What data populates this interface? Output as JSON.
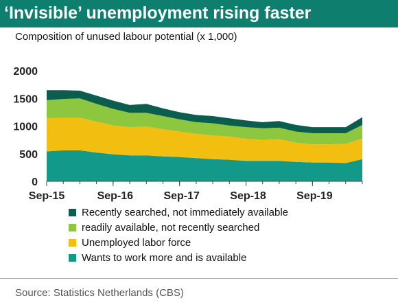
{
  "title": "‘Invisible’ unemployment rising faster",
  "subtitle": "Composition of unused labour potential (x 1,000)",
  "source": "Source: Statistics Netherlands (CBS)",
  "colors": {
    "title_bg": "#0e7f6e",
    "recently_searched": "#0b5e4e",
    "readily_available": "#8dc63f",
    "unemployed": "#f2bf10",
    "wants_more": "#12998a"
  },
  "chart_data": {
    "type": "area",
    "stacked": true,
    "title": "‘Invisible’ unemployment rising faster",
    "subtitle": "Composition of unused labour potential (x 1,000)",
    "x_ticks": [
      "Sep-15",
      "Sep-16",
      "Sep-17",
      "Sep-18",
      "Sep-19"
    ],
    "y_ticks": [
      "0",
      "500",
      "1000",
      "1500",
      "2000"
    ],
    "ylim": [
      0,
      2000
    ],
    "x": [
      "Sep-15",
      "Dec-15",
      "Mar-16",
      "Jun-16",
      "Sep-16",
      "Dec-16",
      "Mar-17",
      "Jun-17",
      "Sep-17",
      "Dec-17",
      "Mar-18",
      "Jun-18",
      "Sep-18",
      "Dec-18",
      "Mar-19",
      "Jun-19",
      "Sep-19",
      "Dec-19",
      "Mar-20",
      "Jun-20"
    ],
    "series": [
      {
        "name": "Wants to work more and is available",
        "key": "wants_more",
        "values": [
          540,
          560,
          560,
          520,
          490,
          470,
          470,
          450,
          440,
          420,
          400,
          390,
          370,
          370,
          370,
          350,
          340,
          340,
          330,
          400
        ]
      },
      {
        "name": "Unemployed labor force",
        "key": "unemployed",
        "values": [
          600,
          590,
          590,
          560,
          520,
          510,
          520,
          490,
          460,
          440,
          430,
          420,
          400,
          380,
          390,
          350,
          330,
          330,
          350,
          370
        ]
      },
      {
        "name": "readily available, not recently searched",
        "key": "readily_available",
        "values": [
          330,
          340,
          350,
          320,
          300,
          260,
          250,
          240,
          220,
          210,
          220,
          200,
          210,
          210,
          210,
          200,
          200,
          200,
          190,
          250
        ]
      },
      {
        "name": "Recently searched, not immediately available",
        "key": "recently_searched",
        "values": [
          180,
          160,
          140,
          150,
          150,
          140,
          160,
          140,
          130,
          130,
          130,
          130,
          120,
          110,
          120,
          120,
          110,
          110,
          110,
          140
        ]
      }
    ],
    "legend": [
      {
        "label": "Recently searched, not immediately available",
        "key": "recently_searched"
      },
      {
        "label": "readily available, not recently searched",
        "key": "readily_available"
      },
      {
        "label": "Unemployed labor force",
        "key": "unemployed"
      },
      {
        "label": "Wants to work more and is available",
        "key": "wants_more"
      }
    ],
    "legend_position": "bottom",
    "grid": false
  }
}
